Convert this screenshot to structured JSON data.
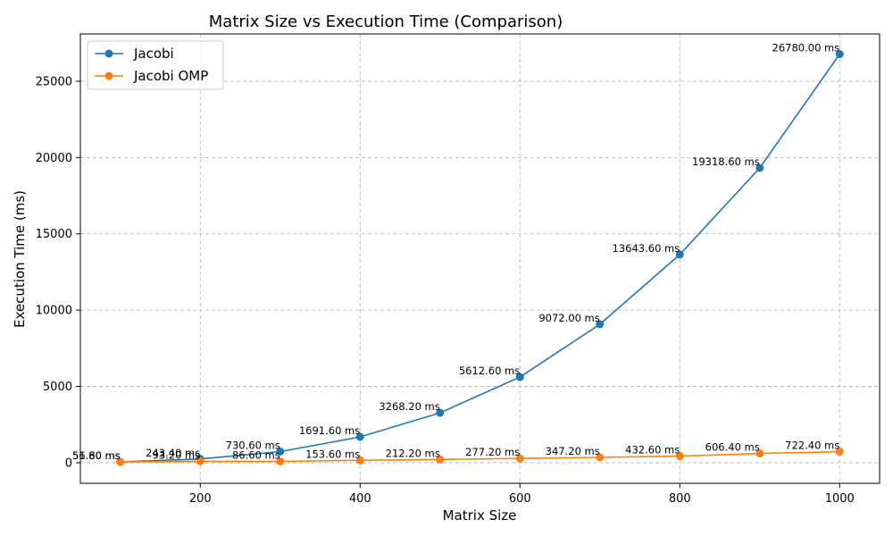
{
  "chart_data": {
    "type": "line",
    "title": "Matrix Size vs Execution Time (Comparison)",
    "xlabel": "Matrix Size",
    "ylabel": "Execution Time (ms)",
    "x": [
      100,
      200,
      300,
      400,
      500,
      600,
      700,
      800,
      900,
      1000
    ],
    "xlim": [
      50,
      1050
    ],
    "ylim": [
      -1350,
      28100
    ],
    "x_ticks": [
      200,
      400,
      600,
      800,
      1000
    ],
    "y_ticks": [
      0,
      5000,
      10000,
      15000,
      20000,
      25000
    ],
    "grid": true,
    "legend_position": "top-left",
    "series": [
      {
        "name": "Jacobi",
        "color": "#1f77b4",
        "values": [
          56.6,
          243.4,
          730.6,
          1691.6,
          3268.2,
          5612.6,
          9072.0,
          13643.6,
          19318.6,
          26780.0
        ],
        "labels": [
          "56.60 ms",
          "243.40 ms",
          "730.60 ms",
          "1691.60 ms",
          "3268.20 ms",
          "5612.60 ms",
          "9072.00 ms",
          "13643.60 ms",
          "19318.60 ms",
          "26780.00 ms"
        ]
      },
      {
        "name": "Jacobi OMP",
        "color": "#ff7f0e",
        "values": [
          51.8,
          93.2,
          86.6,
          153.6,
          212.2,
          277.2,
          347.2,
          432.6,
          606.4,
          722.4
        ],
        "labels": [
          "51.80 ms",
          "93.20 ms",
          "86.60 ms",
          "153.60 ms",
          "212.20 ms",
          "277.20 ms",
          "347.20 ms",
          "432.60 ms",
          "606.40 ms",
          "722.40 ms"
        ]
      }
    ]
  }
}
